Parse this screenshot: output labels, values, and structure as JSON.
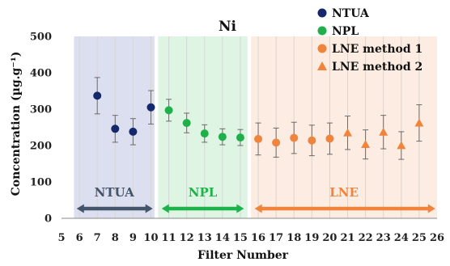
{
  "chart_data": {
    "type": "scatter",
    "title": "Ni",
    "xlabel": "Filter Number",
    "ylabel": "Concentration (µg.g⁻¹)",
    "xlim": [
      5,
      26
    ],
    "ylim": [
      0,
      500
    ],
    "xticks": [
      "5",
      "6",
      "7",
      "8",
      "9",
      "10",
      "11",
      "12",
      "13",
      "14",
      "15",
      "16",
      "17",
      "18",
      "19",
      "20",
      "21",
      "22",
      "23",
      "24",
      "25",
      "26"
    ],
    "yticks": [
      "0",
      "100",
      "200",
      "300",
      "400",
      "500"
    ],
    "grid": "vertical",
    "legend_position": "top-right",
    "regions": [
      {
        "label": "NTUA",
        "x_range": [
          5.7,
          10.2
        ],
        "fill": "#dcdff0",
        "arrow_color": "#44546a",
        "arrow_range": [
          5.85,
          10.1
        ]
      },
      {
        "label": "NPL",
        "x_range": [
          10.4,
          15.4
        ],
        "fill": "#dff5e4",
        "arrow_color": "#1db34a",
        "arrow_range": [
          10.6,
          15.2
        ]
      },
      {
        "label": "LNE",
        "x_range": [
          15.6,
          26.0
        ],
        "fill": "#fdece2",
        "arrow_color": "#f0843c",
        "arrow_range": [
          15.8,
          25.9
        ]
      }
    ],
    "series": [
      {
        "name": "NTUA",
        "color": "#14286a",
        "marker": "circle",
        "points": [
          {
            "x": 7,
            "y": 337,
            "err": 50
          },
          {
            "x": 8,
            "y": 246,
            "err": 37
          },
          {
            "x": 9,
            "y": 238,
            "err": 36
          },
          {
            "x": 10,
            "y": 305,
            "err": 46
          }
        ]
      },
      {
        "name": "NPL",
        "color": "#20b04b",
        "marker": "circle",
        "points": [
          {
            "x": 11,
            "y": 297,
            "err": 30
          },
          {
            "x": 12,
            "y": 262,
            "err": 27
          },
          {
            "x": 13,
            "y": 233,
            "err": 24
          },
          {
            "x": 14,
            "y": 224,
            "err": 22
          },
          {
            "x": 15,
            "y": 222,
            "err": 22
          }
        ]
      },
      {
        "name": "LNE method 1",
        "color": "#f0843c",
        "marker": "circle",
        "points": [
          {
            "x": 16,
            "y": 218,
            "err": 44
          },
          {
            "x": 17,
            "y": 208,
            "err": 40
          },
          {
            "x": 18,
            "y": 221,
            "err": 43
          },
          {
            "x": 19,
            "y": 214,
            "err": 42
          },
          {
            "x": 20,
            "y": 219,
            "err": 43
          }
        ]
      },
      {
        "name": "LNE method 2",
        "color": "#f0843c",
        "marker": "triangle",
        "points": [
          {
            "x": 21,
            "y": 235,
            "err": 46
          },
          {
            "x": 22,
            "y": 203,
            "err": 40
          },
          {
            "x": 23,
            "y": 237,
            "err": 46
          },
          {
            "x": 24,
            "y": 200,
            "err": 38
          },
          {
            "x": 25,
            "y": 262,
            "err": 50
          }
        ]
      }
    ]
  }
}
